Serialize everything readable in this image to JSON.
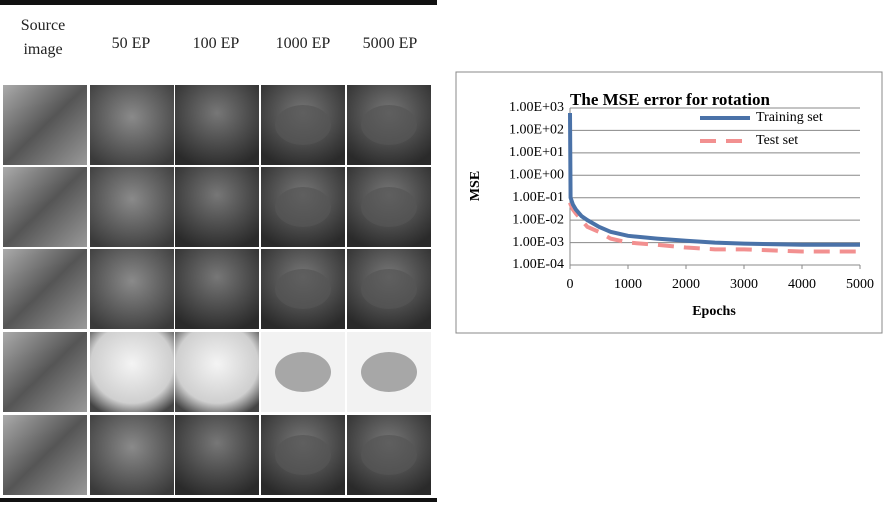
{
  "grid": {
    "headers": [
      "Source image",
      "50 EP",
      "100 EP",
      "1000 EP",
      "5000 EP"
    ]
  },
  "chart_data": {
    "type": "line",
    "title": "The MSE error for rotation",
    "x_label": "Epochs",
    "y_label": "MSE",
    "x": [
      0,
      10,
      50,
      100,
      200,
      300,
      500,
      700,
      1000,
      1500,
      2000,
      2500,
      3000,
      4000,
      5000
    ],
    "series": [
      {
        "name": "Training set",
        "color": "#4a72a8",
        "dash": false,
        "values": [
          600,
          0.1,
          0.05,
          0.03,
          0.015,
          0.01,
          0.005,
          0.003,
          0.002,
          0.0015,
          0.0012,
          0.001,
          0.0009,
          0.0008,
          0.0008
        ]
      },
      {
        "name": "Test set",
        "color": "#f29090",
        "dash": true,
        "values": [
          0.06,
          0.05,
          0.03,
          0.02,
          0.01,
          0.005,
          0.003,
          0.0015,
          0.001,
          0.0008,
          0.0006,
          0.0005,
          0.0005,
          0.0004,
          0.0004
        ]
      }
    ],
    "log_y": true,
    "grid": true,
    "xlim": [
      0,
      5000
    ],
    "xticks": [
      0,
      1000,
      2000,
      3000,
      4000,
      5000
    ],
    "ylim": [
      0.0001,
      1000
    ],
    "yticks": [
      {
        "value": 0.0001,
        "label": "1.00E-04"
      },
      {
        "value": 0.001,
        "label": "1.00E-03"
      },
      {
        "value": 0.01,
        "label": "1.00E-02"
      },
      {
        "value": 0.1,
        "label": "1.00E-01"
      },
      {
        "value": 1,
        "label": "1.00E+00"
      },
      {
        "value": 10,
        "label": "1.00E+01"
      },
      {
        "value": 100,
        "label": "1.00E+02"
      },
      {
        "value": 1000,
        "label": "1.00E+03"
      }
    ],
    "legend": "top-right"
  }
}
